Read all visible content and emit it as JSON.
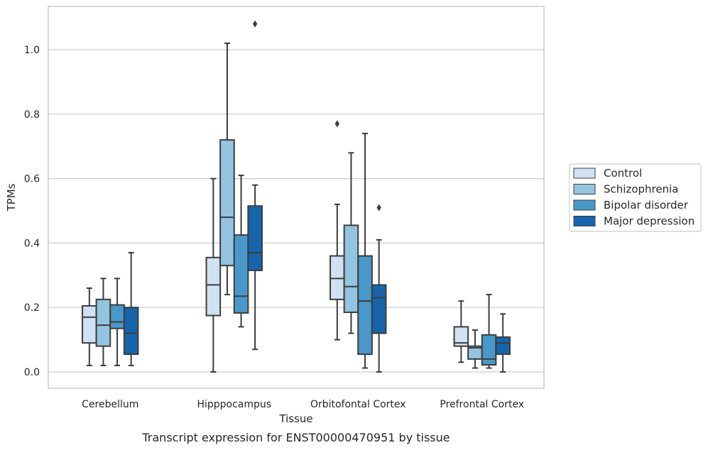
{
  "chart_data": {
    "type": "box",
    "xlabel": "Tissue",
    "ylabel": "TPMs",
    "caption": "Transcript expression for ENST00000470951 by tissue",
    "ylim": [
      -0.05,
      1.13
    ],
    "yticks": [
      "0.0",
      "0.2",
      "0.4",
      "0.6",
      "0.8",
      "1.0"
    ],
    "ytick_values": [
      0.0,
      0.2,
      0.4,
      0.6,
      0.8,
      1.0
    ],
    "grid": "horizontal",
    "legend_position": "right",
    "categories": [
      "Cerebellum",
      "Hipppocampus",
      "Orbitofontal Cortex",
      "Prefrontal Cortex"
    ],
    "series": [
      {
        "name": "Control",
        "color": "#d0e1f2",
        "boxes": [
          {
            "whisker_low": 0.02,
            "q1": 0.09,
            "median": 0.17,
            "q3": 0.205,
            "whisker_high": 0.26,
            "outliers": []
          },
          {
            "whisker_low": 0.0,
            "q1": 0.175,
            "median": 0.27,
            "q3": 0.355,
            "whisker_high": 0.6,
            "outliers": []
          },
          {
            "whisker_low": 0.1,
            "q1": 0.225,
            "median": 0.29,
            "q3": 0.36,
            "whisker_high": 0.52,
            "outliers": [
              0.77
            ]
          },
          {
            "whisker_low": 0.03,
            "q1": 0.08,
            "median": 0.09,
            "q3": 0.14,
            "whisker_high": 0.22,
            "outliers": []
          }
        ]
      },
      {
        "name": "Schizophrenia",
        "color": "#94c4df",
        "boxes": [
          {
            "whisker_low": 0.02,
            "q1": 0.08,
            "median": 0.145,
            "q3": 0.225,
            "whisker_high": 0.29,
            "outliers": []
          },
          {
            "whisker_low": 0.24,
            "q1": 0.33,
            "median": 0.48,
            "q3": 0.72,
            "whisker_high": 1.02,
            "outliers": []
          },
          {
            "whisker_low": 0.12,
            "q1": 0.185,
            "median": 0.265,
            "q3": 0.455,
            "whisker_high": 0.68,
            "outliers": []
          },
          {
            "whisker_low": 0.012,
            "q1": 0.04,
            "median": 0.075,
            "q3": 0.08,
            "whisker_high": 0.13,
            "outliers": []
          }
        ]
      },
      {
        "name": "Bipolar disorder",
        "color": "#4a98c9",
        "boxes": [
          {
            "whisker_low": 0.02,
            "q1": 0.135,
            "median": 0.155,
            "q3": 0.208,
            "whisker_high": 0.29,
            "outliers": []
          },
          {
            "whisker_low": 0.14,
            "q1": 0.183,
            "median": 0.235,
            "q3": 0.425,
            "whisker_high": 0.61,
            "outliers": []
          },
          {
            "whisker_low": 0.012,
            "q1": 0.055,
            "median": 0.22,
            "q3": 0.36,
            "whisker_high": 0.74,
            "outliers": []
          },
          {
            "whisker_low": 0.012,
            "q1": 0.022,
            "median": 0.04,
            "q3": 0.115,
            "whisker_high": 0.24,
            "outliers": []
          }
        ]
      },
      {
        "name": "Major depression",
        "color": "#1764ab",
        "boxes": [
          {
            "whisker_low": 0.02,
            "q1": 0.055,
            "median": 0.12,
            "q3": 0.2,
            "whisker_high": 0.37,
            "outliers": []
          },
          {
            "whisker_low": 0.07,
            "q1": 0.315,
            "median": 0.37,
            "q3": 0.515,
            "whisker_high": 0.58,
            "outliers": [
              1.08
            ]
          },
          {
            "whisker_low": 0.0,
            "q1": 0.12,
            "median": 0.23,
            "q3": 0.27,
            "whisker_high": 0.41,
            "outliers": [
              0.51
            ]
          },
          {
            "whisker_low": 0.0,
            "q1": 0.055,
            "median": 0.09,
            "q3": 0.108,
            "whisker_high": 0.18,
            "outliers": []
          }
        ]
      }
    ]
  }
}
